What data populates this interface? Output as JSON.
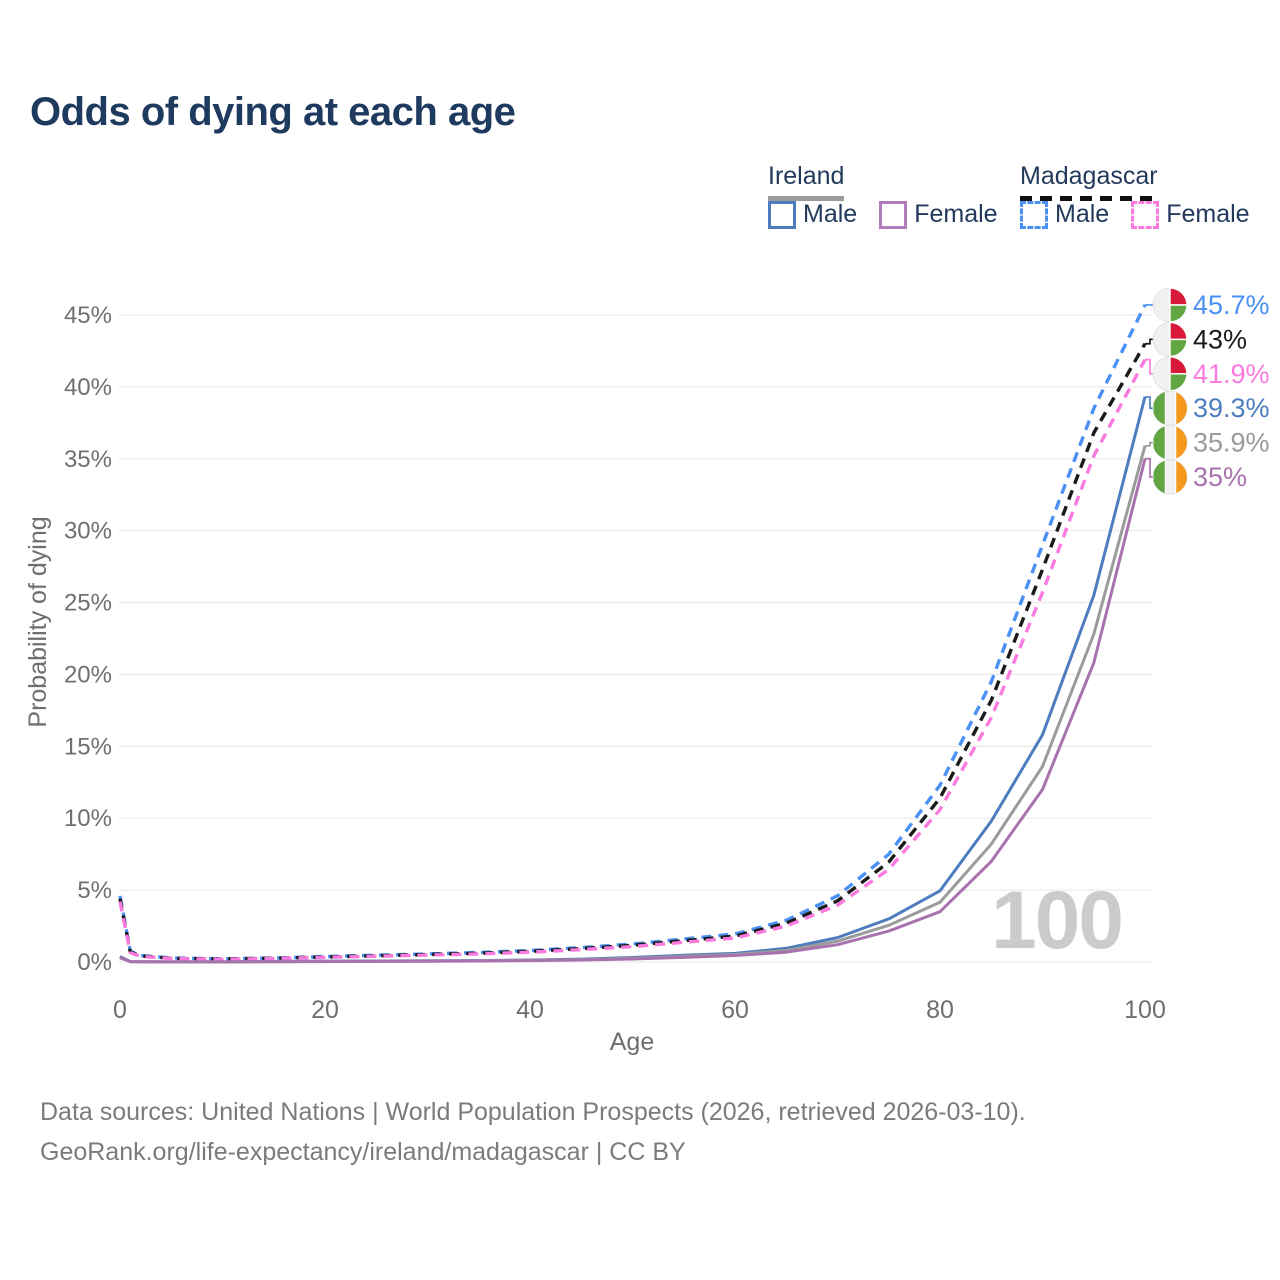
{
  "title": "Odds of dying at each age",
  "legend": {
    "groups": [
      {
        "label": "Ireland",
        "underline": "solid",
        "items": [
          {
            "label": "Male"
          },
          {
            "label": "Female"
          }
        ]
      },
      {
        "label": "Madagascar",
        "underline": "dashed",
        "items": [
          {
            "label": "Male"
          },
          {
            "label": "Female"
          }
        ]
      }
    ]
  },
  "chart_data": {
    "type": "line",
    "title": "Odds of dying at each age",
    "xlabel": "Age",
    "ylabel": "Probability of dying",
    "xlim": [
      0,
      100
    ],
    "ylim": [
      0,
      46
    ],
    "x_ticks": [
      0,
      20,
      40,
      60,
      80,
      100
    ],
    "y_ticks": [
      0,
      5,
      10,
      15,
      20,
      25,
      30,
      35,
      40,
      45
    ],
    "y_tick_suffix": "%",
    "grid": "horizontal",
    "watermark": "100",
    "x": [
      0,
      1,
      2,
      5,
      10,
      15,
      20,
      25,
      30,
      35,
      40,
      45,
      50,
      55,
      60,
      65,
      70,
      75,
      80,
      85,
      90,
      95,
      100
    ],
    "series": [
      {
        "name": "Madagascar Male",
        "color": "#4a90f5",
        "dash": true,
        "flag": "madagascar",
        "end_label": "45.7%",
        "values": [
          4.6,
          0.75,
          0.45,
          0.28,
          0.22,
          0.28,
          0.38,
          0.47,
          0.56,
          0.66,
          0.8,
          1.0,
          1.25,
          1.6,
          1.95,
          2.9,
          4.6,
          7.5,
          12.3,
          19.5,
          29.0,
          38.5,
          45.7
        ]
      },
      {
        "name": "Madagascar Both sexes",
        "color": "#1a1a1a",
        "dash": true,
        "flag": "madagascar",
        "end_label": "43%",
        "values": [
          4.4,
          0.7,
          0.42,
          0.26,
          0.2,
          0.26,
          0.35,
          0.43,
          0.52,
          0.61,
          0.74,
          0.93,
          1.16,
          1.48,
          1.8,
          2.7,
          4.25,
          6.95,
          11.4,
          18.2,
          27.3,
          36.8,
          43.0
        ]
      },
      {
        "name": "Madagascar Female",
        "color": "#fb7ae0",
        "dash": true,
        "flag": "madagascar",
        "end_label": "41.9%",
        "values": [
          4.2,
          0.65,
          0.39,
          0.24,
          0.19,
          0.24,
          0.32,
          0.4,
          0.48,
          0.56,
          0.68,
          0.86,
          1.07,
          1.37,
          1.67,
          2.5,
          3.95,
          6.45,
          10.6,
          17.0,
          25.7,
          35.2,
          41.9
        ]
      },
      {
        "name": "Ireland Male",
        "color": "#4d7dbf",
        "dash": false,
        "flag": "ireland",
        "end_label": "39.3%",
        "values": [
          0.38,
          0.03,
          0.02,
          0.01,
          0.01,
          0.04,
          0.06,
          0.07,
          0.08,
          0.1,
          0.14,
          0.2,
          0.31,
          0.47,
          0.6,
          0.95,
          1.7,
          3.0,
          4.95,
          9.8,
          15.8,
          25.5,
          39.3
        ]
      },
      {
        "name": "Ireland Both sexes",
        "color": "#9b9b9b",
        "dash": false,
        "flag": "ireland",
        "end_label": "35.9%",
        "values": [
          0.33,
          0.028,
          0.018,
          0.009,
          0.009,
          0.03,
          0.045,
          0.055,
          0.065,
          0.085,
          0.12,
          0.17,
          0.26,
          0.39,
          0.52,
          0.8,
          1.45,
          2.55,
          4.15,
          8.2,
          13.6,
          22.8,
          35.9
        ]
      },
      {
        "name": "Ireland Female",
        "color": "#a872ae",
        "dash": false,
        "flag": "ireland",
        "end_label": "35%",
        "values": [
          0.3,
          0.025,
          0.015,
          0.008,
          0.008,
          0.02,
          0.03,
          0.04,
          0.05,
          0.07,
          0.1,
          0.14,
          0.21,
          0.32,
          0.45,
          0.68,
          1.2,
          2.15,
          3.5,
          7.0,
          12.0,
          20.8,
          35.0
        ]
      }
    ],
    "flag_colors": {
      "madagascar": {
        "white": "#f1f1f1",
        "red": "#d81939",
        "green": "#61a643"
      },
      "ireland": {
        "green": "#61a643",
        "white": "#f1f1f1",
        "orange": "#f5991c"
      }
    },
    "axis_colors": {
      "tick": "#6f6f6f",
      "grid": "#ececec",
      "watermark": "#cbcbcb"
    }
  },
  "footer": {
    "line1": "Data sources: United Nations | World Population Prospects (2026, retrieved 2026-03-10).",
    "line2": "GeoRank.org/life-expectancy/ireland/madagascar | CC BY"
  }
}
